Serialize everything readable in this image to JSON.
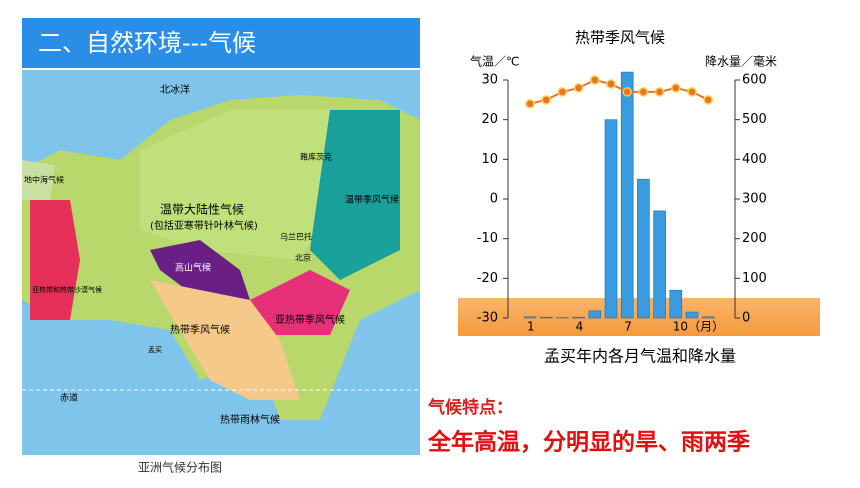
{
  "header": {
    "title": "二、自然环境---气候"
  },
  "map": {
    "caption": "亚洲气候分布图",
    "labels": [
      "北冰洋",
      "雅库茨克",
      "温带大陆性气候",
      "(包括亚寒带针叶林气候)",
      "乌兰巴托",
      "北京",
      "温带季风气候",
      "高山气候",
      "亚热带季风气候",
      "热带季风气候",
      "孟买",
      "地中海气候",
      "亚热带和热带沙漠气候",
      "赤道",
      "热带雨林气候"
    ]
  },
  "notes": {
    "heading": "气候特点：",
    "text": "全年高温，分明显的旱、雨两季"
  },
  "chart_data": {
    "type": "bar",
    "title": "热带季风气候",
    "caption": "孟买年内各月气温和降水量",
    "ylabel": "气温／℃",
    "y2label": "降水量／毫米",
    "categories": [
      "1",
      null,
      null,
      "4",
      null,
      null,
      "7",
      null,
      null,
      "10（月）",
      null,
      null
    ],
    "ylim": [
      -30,
      30
    ],
    "yticks": [
      -30,
      -20,
      -10,
      0,
      10,
      20,
      30
    ],
    "y2lim": [
      0,
      600
    ],
    "y2ticks": [
      0,
      100,
      200,
      300,
      400,
      500,
      600
    ],
    "series": [
      {
        "type": "line",
        "color": "#e8732a",
        "values": [
          24,
          25,
          27,
          28,
          30,
          29,
          27,
          27,
          27,
          28,
          27,
          25
        ]
      },
      {
        "type": "bar",
        "axis": "y2",
        "color": "#3a9be0",
        "values": [
          3,
          2,
          1,
          2,
          18,
          500,
          620,
          350,
          270,
          70,
          15,
          3
        ]
      }
    ]
  }
}
